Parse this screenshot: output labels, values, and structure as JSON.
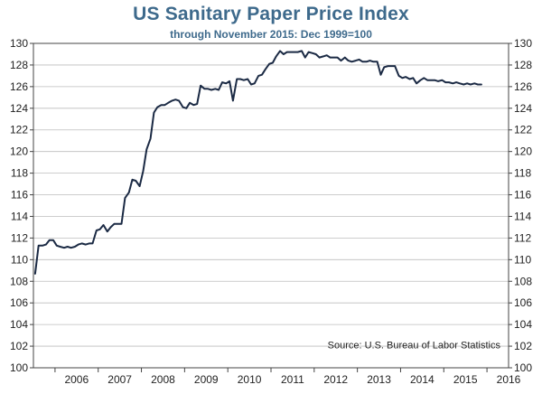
{
  "chart_data": {
    "type": "line",
    "title": "US Sanitary Paper Price Index",
    "subtitle": "through November 2015: Dec 1999=100",
    "source": "Source: U.S. Bureau of Labor Statistics",
    "xlabel": "",
    "ylabel": "",
    "xlim": [
      2005.5,
      2016.5
    ],
    "ylim": [
      100,
      130
    ],
    "yticks": [
      100,
      102,
      104,
      106,
      108,
      110,
      112,
      114,
      116,
      118,
      120,
      122,
      124,
      126,
      128,
      130
    ],
    "xtick_labels": [
      "2006",
      "2007",
      "2008",
      "2009",
      "2010",
      "2011",
      "2012",
      "2013",
      "2014",
      "2015",
      "2016"
    ],
    "grid": "horizontal",
    "line_color": "#1b2a44",
    "title_color": "#3e6a8c",
    "series": [
      {
        "x": [
          2005.54,
          2005.62,
          2005.71,
          2005.79,
          2005.87,
          2005.96,
          2006.04,
          2006.12,
          2006.21,
          2006.29,
          2006.37,
          2006.46,
          2006.54,
          2006.62,
          2006.71,
          2006.79,
          2006.87,
          2006.96,
          2007.04,
          2007.12,
          2007.21,
          2007.29,
          2007.37,
          2007.46,
          2007.54,
          2007.62,
          2007.71,
          2007.79,
          2007.87,
          2007.96,
          2008.04,
          2008.12,
          2008.21,
          2008.29,
          2008.37,
          2008.46,
          2008.54,
          2008.62,
          2008.71,
          2008.79,
          2008.87,
          2008.96,
          2009.04,
          2009.12,
          2009.21,
          2009.29,
          2009.37,
          2009.46,
          2009.54,
          2009.62,
          2009.71,
          2009.79,
          2009.87,
          2009.96,
          2010.04,
          2010.12,
          2010.21,
          2010.29,
          2010.37,
          2010.46,
          2010.54,
          2010.62,
          2010.71,
          2010.79,
          2010.87,
          2010.96,
          2011.04,
          2011.12,
          2011.21,
          2011.29,
          2011.37,
          2011.46,
          2011.54,
          2011.62,
          2011.71,
          2011.79,
          2011.87,
          2011.96,
          2012.04,
          2012.12,
          2012.21,
          2012.29,
          2012.37,
          2012.46,
          2012.54,
          2012.62,
          2012.71,
          2012.79,
          2012.87,
          2012.96,
          2013.04,
          2013.12,
          2013.21,
          2013.29,
          2013.37,
          2013.46,
          2013.54,
          2013.62,
          2013.71,
          2013.79,
          2013.87,
          2013.96,
          2014.04,
          2014.12,
          2014.21,
          2014.29,
          2014.37,
          2014.46,
          2014.54,
          2014.62,
          2014.71,
          2014.79,
          2014.87,
          2014.96,
          2015.04,
          2015.12,
          2015.21,
          2015.29,
          2015.37,
          2015.46,
          2015.54,
          2015.62,
          2015.71,
          2015.79,
          2015.87
        ],
        "values": [
          108.7,
          111.3,
          111.3,
          111.4,
          111.8,
          111.8,
          111.3,
          111.2,
          111.1,
          111.2,
          111.1,
          111.2,
          111.4,
          111.5,
          111.4,
          111.5,
          111.5,
          112.7,
          112.8,
          113.2,
          112.6,
          113.0,
          113.3,
          113.3,
          113.3,
          115.7,
          116.2,
          117.4,
          117.3,
          116.8,
          118.2,
          120.2,
          121.2,
          123.6,
          124.1,
          124.3,
          124.3,
          124.5,
          124.7,
          124.8,
          124.7,
          124.1,
          124.0,
          124.5,
          124.3,
          124.4,
          126.1,
          125.8,
          125.8,
          125.7,
          125.8,
          125.7,
          126.4,
          126.3,
          126.5,
          124.7,
          126.7,
          126.7,
          126.6,
          126.7,
          126.2,
          126.3,
          127.0,
          127.1,
          127.6,
          128.1,
          128.2,
          128.8,
          129.3,
          129.0,
          129.2,
          129.2,
          129.2,
          129.2,
          129.3,
          128.7,
          129.2,
          129.1,
          129.0,
          128.7,
          128.8,
          128.9,
          128.7,
          128.7,
          128.7,
          128.4,
          128.7,
          128.4,
          128.3,
          128.4,
          128.5,
          128.3,
          128.3,
          128.4,
          128.3,
          128.3,
          127.1,
          127.8,
          127.9,
          127.9,
          127.9,
          127.0,
          126.8,
          126.9,
          126.7,
          126.8,
          126.3,
          126.6,
          126.8,
          126.6,
          126.6,
          126.6,
          126.5,
          126.6,
          126.4,
          126.4,
          126.3,
          126.4,
          126.3,
          126.2,
          126.3,
          126.2,
          126.3,
          126.2,
          126.2
        ]
      }
    ]
  }
}
